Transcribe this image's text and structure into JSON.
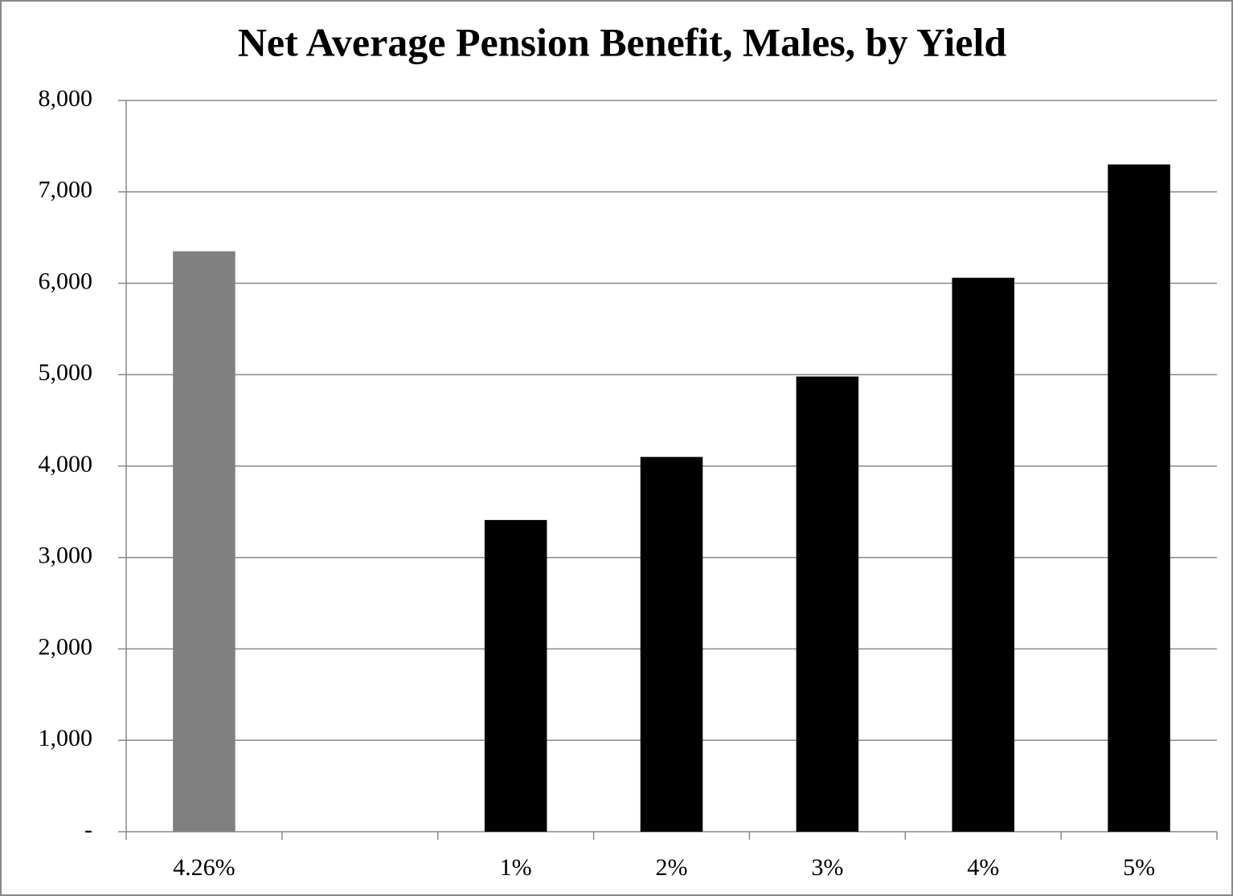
{
  "chart_data": {
    "type": "bar",
    "title": "Net Average Pension Benefit, Males, by Yield",
    "categories": [
      "4.26%",
      null,
      "1%",
      "2%",
      "3%",
      "4%",
      "5%"
    ],
    "values": [
      6350,
      null,
      3410,
      4100,
      4980,
      6060,
      7300
    ],
    "colors": [
      "#808080",
      "#000000",
      "#000000",
      "#000000",
      "#000000",
      "#000000",
      "#000000"
    ],
    "ylim": [
      0,
      8000
    ],
    "yticks": [
      {
        "value": 0,
        "label": "-"
      },
      {
        "value": 1000,
        "label": "1,000"
      },
      {
        "value": 2000,
        "label": "2,000"
      },
      {
        "value": 3000,
        "label": "3,000"
      },
      {
        "value": 4000,
        "label": "4,000"
      },
      {
        "value": 5000,
        "label": "5,000"
      },
      {
        "value": 6000,
        "label": "6,000"
      },
      {
        "value": 7000,
        "label": "7,000"
      },
      {
        "value": 8000,
        "label": "8,000"
      }
    ],
    "grid": true
  }
}
